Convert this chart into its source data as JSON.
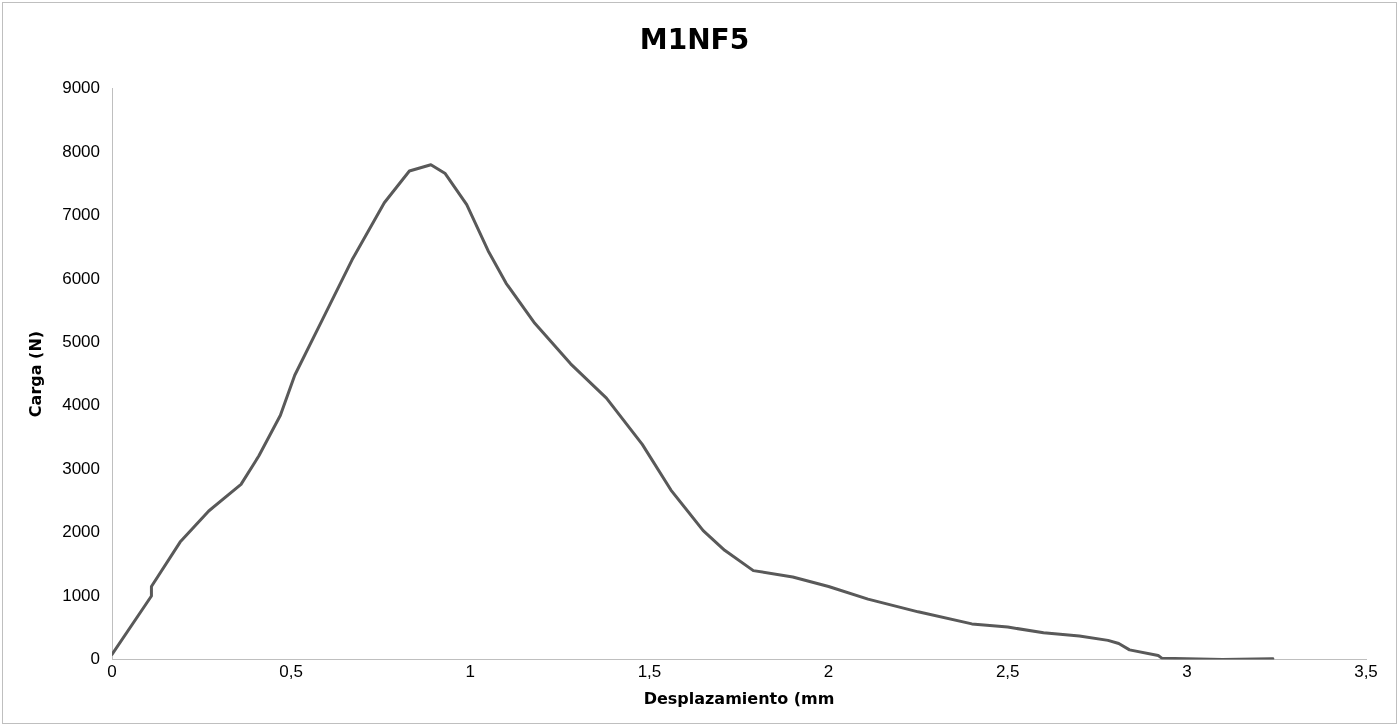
{
  "chart_data": {
    "type": "line",
    "title": "M1NF5",
    "xlabel": "Desplazamiento (mm",
    "ylabel": "Carga (N)",
    "x": [
      0,
      0.11,
      0.11,
      0.19,
      0.27,
      0.36,
      0.41,
      0.47,
      0.51,
      0.59,
      0.67,
      0.76,
      0.83,
      0.89,
      0.93,
      0.99,
      1.05,
      1.1,
      1.18,
      1.28,
      1.38,
      1.48,
      1.56,
      1.65,
      1.71,
      1.79,
      1.9,
      2,
      2.11,
      2.25,
      2.4,
      2.5,
      2.6,
      2.7,
      2.78,
      2.81,
      2.84,
      2.92,
      2.93,
      3,
      3.1,
      3.24
    ],
    "series": [
      {
        "color": "#595959",
        "values": [
          80,
          1000,
          1150,
          1850,
          2340,
          2760,
          3210,
          3850,
          4480,
          5390,
          6300,
          7200,
          7700,
          7800,
          7660,
          7170,
          6440,
          5930,
          5300,
          4660,
          4120,
          3390,
          2670,
          2030,
          1720,
          1400,
          1300,
          1150,
          950,
          750,
          560,
          510,
          420,
          370,
          300,
          250,
          150,
          60,
          20,
          10,
          0,
          10
        ]
      }
    ],
    "xlim": [
      0,
      3.5
    ],
    "xticks": [
      0,
      {
        "value": 0.5,
        "label": "0,5"
      },
      1,
      {
        "value": 1.5,
        "label": "1,5"
      },
      2,
      {
        "value": 2.5,
        "label": "2,5"
      },
      3,
      {
        "value": 3.5,
        "label": "3,5"
      }
    ],
    "ylim": [
      0,
      9000
    ],
    "yticks": [
      0,
      1000,
      2000,
      3000,
      4000,
      5000,
      6000,
      7000,
      8000,
      9000
    ],
    "grid": false,
    "legend": false,
    "marker": "none",
    "line_style": "solid"
  }
}
